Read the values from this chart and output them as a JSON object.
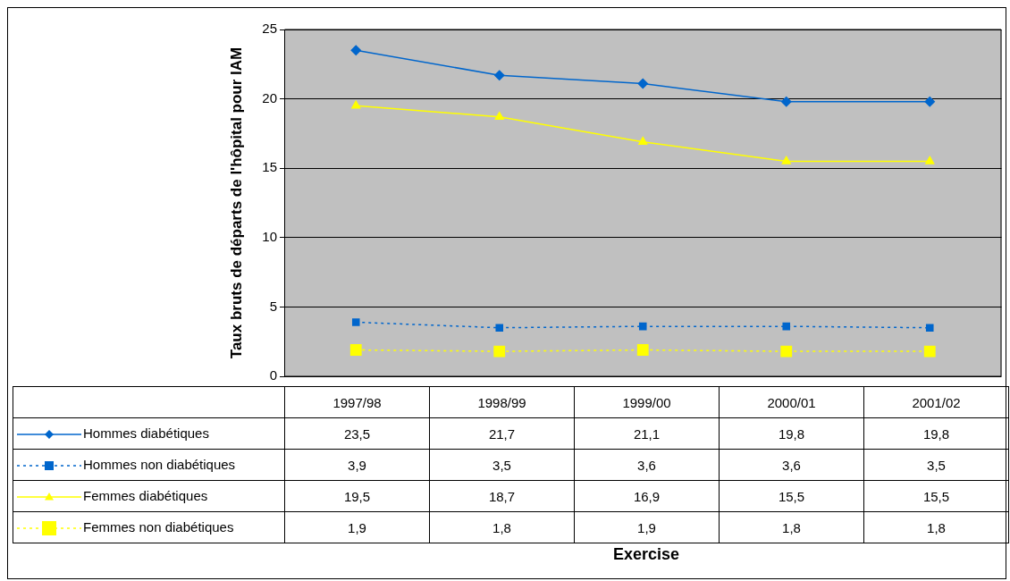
{
  "chart_data": {
    "type": "line",
    "ylabel": "Taux bruts de départs de l'hôpital pour IAM",
    "annotations": [
      "Exercise"
    ],
    "categories": [
      "1997/98",
      "1998/99",
      "1999/00",
      "2000/01",
      "2001/02"
    ],
    "ylim": [
      0,
      25
    ],
    "yticks": [
      0,
      5,
      10,
      15,
      20,
      25
    ],
    "grid": "y",
    "legend": "bottom",
    "series": [
      {
        "name": "Hommes diabétiques",
        "color": "#0066cc",
        "marker": "diamond",
        "line_style": "solid",
        "values": [
          23.5,
          21.7,
          21.1,
          19.8,
          19.8
        ],
        "value_labels": [
          "23,5",
          "21,7",
          "21,1",
          "19,8",
          "19,8"
        ]
      },
      {
        "name": "Hommes non diabétiques",
        "color": "#0066cc",
        "marker": "square",
        "line_style": "dotted",
        "values": [
          3.9,
          3.5,
          3.6,
          3.6,
          3.5
        ],
        "value_labels": [
          "3,9",
          "3,5",
          "3,6",
          "3,6",
          "3,5"
        ]
      },
      {
        "name": "Femmes diabétiques",
        "color": "#ffff00",
        "marker": "triangle",
        "line_style": "solid",
        "values": [
          19.5,
          18.7,
          16.9,
          15.5,
          15.5
        ],
        "value_labels": [
          "19,5",
          "18,7",
          "16,9",
          "15,5",
          "15,5"
        ]
      },
      {
        "name": "Femmes non diabétiques",
        "color": "#ffff00",
        "marker": "square",
        "line_style": "dotted",
        "values": [
          1.9,
          1.8,
          1.9,
          1.8,
          1.8
        ],
        "value_labels": [
          "1,9",
          "1,8",
          "1,9",
          "1,8",
          "1,8"
        ]
      }
    ]
  }
}
